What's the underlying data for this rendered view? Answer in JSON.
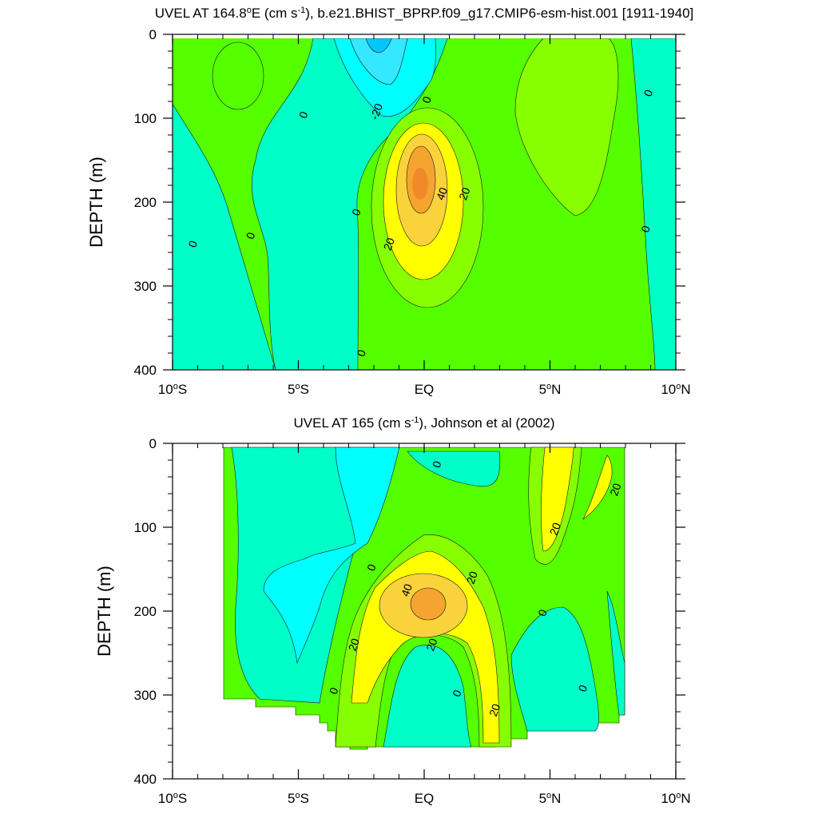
{
  "chart_data": [
    {
      "type": "heatmap",
      "title": "UVEL AT 164.8",
      "title_sup_deg": "o",
      "title_mid": "E (cm s",
      "title_sup_unit": "-1",
      "title_end": "), b.e21.BHIST_BPRP.f09_g17.CMIP6-esm-hist.001 [1911-1940]",
      "ylabel": "DEPTH (m)",
      "ylim": [
        0,
        400
      ],
      "xlim": [
        -10,
        10
      ],
      "x_ticks": [
        {
          "value": -10,
          "label": "10",
          "sup": "o",
          "hemi": "S"
        },
        {
          "value": -5,
          "label": "5",
          "sup": "o",
          "hemi": "S"
        },
        {
          "value": 0,
          "label": "EQ",
          "sup": "",
          "hemi": ""
        },
        {
          "value": 5,
          "label": "5",
          "sup": "o",
          "hemi": "N"
        },
        {
          "value": 10,
          "label": "10",
          "sup": "o",
          "hemi": "N"
        }
      ],
      "y_ticks": [
        {
          "value": 0,
          "label": "0"
        },
        {
          "value": 100,
          "label": "100"
        },
        {
          "value": 200,
          "label": "200"
        },
        {
          "value": 300,
          "label": "300"
        },
        {
          "value": 400,
          "label": "400"
        }
      ],
      "contour_labels": [
        {
          "text": "-20",
          "lon": -1.9,
          "depth": 92
        },
        {
          "text": "0",
          "lon": 0.1,
          "depth": 78
        },
        {
          "text": "0",
          "lon": -4.8,
          "depth": 96
        },
        {
          "text": "0",
          "lon": 8.9,
          "depth": 70
        },
        {
          "text": "40",
          "lon": 0.7,
          "depth": 190
        },
        {
          "text": "20",
          "lon": 1.6,
          "depth": 190
        },
        {
          "text": "20",
          "lon": -1.4,
          "depth": 250
        },
        {
          "text": "0",
          "lon": -2.7,
          "depth": 212
        },
        {
          "text": "0",
          "lon": -9.2,
          "depth": 250
        },
        {
          "text": "0",
          "lon": -6.9,
          "depth": 240
        },
        {
          "text": "0",
          "lon": 8.8,
          "depth": 232
        },
        {
          "text": "0",
          "lon": -2.5,
          "depth": 380
        }
      ]
    },
    {
      "type": "heatmap",
      "title": "UVEL AT 165 (cm s",
      "title_sup_unit": "-1",
      "title_end": "), Johnson et al (2002)",
      "ylabel": "DEPTH (m)",
      "ylim": [
        0,
        400
      ],
      "xlim": [
        -10,
        10
      ],
      "x_ticks": [
        {
          "value": -10,
          "label": "10",
          "sup": "o",
          "hemi": "S"
        },
        {
          "value": -5,
          "label": "5",
          "sup": "o",
          "hemi": "S"
        },
        {
          "value": 0,
          "label": "EQ",
          "sup": "",
          "hemi": ""
        },
        {
          "value": 5,
          "label": "5",
          "sup": "o",
          "hemi": "N"
        },
        {
          "value": 10,
          "label": "10",
          "sup": "o",
          "hemi": "N"
        }
      ],
      "y_ticks": [
        {
          "value": 0,
          "label": "0"
        },
        {
          "value": 100,
          "label": "100"
        },
        {
          "value": 200,
          "label": "200"
        },
        {
          "value": 300,
          "label": "300"
        },
        {
          "value": 400,
          "label": "400"
        }
      ],
      "contour_labels": [
        {
          "text": "0",
          "lon": 0.5,
          "depth": 25
        },
        {
          "text": "20",
          "lon": 7.6,
          "depth": 55
        },
        {
          "text": "20",
          "lon": 5.2,
          "depth": 102
        },
        {
          "text": "0",
          "lon": -2.1,
          "depth": 148
        },
        {
          "text": "20",
          "lon": 1.9,
          "depth": 160
        },
        {
          "text": "40",
          "lon": -0.7,
          "depth": 175
        },
        {
          "text": "0",
          "lon": 4.7,
          "depth": 202
        },
        {
          "text": "20",
          "lon": -2.8,
          "depth": 240
        },
        {
          "text": "20",
          "lon": 0.3,
          "depth": 240
        },
        {
          "text": "0",
          "lon": -3.6,
          "depth": 295
        },
        {
          "text": "0",
          "lon": 1.3,
          "depth": 298
        },
        {
          "text": "0",
          "lon": 6.3,
          "depth": 292
        },
        {
          "text": "20",
          "lon": 2.8,
          "depth": 318
        }
      ]
    }
  ],
  "colors": {
    "ge40": "#f5a430",
    "c30": "#fad23c",
    "c20": "#ffff00",
    "c10": "#87ff00",
    "c0": "#55ff00",
    "cm10": "#00ffc8",
    "cm20": "#00ffff",
    "cm30": "#33e8ff",
    "le40": "#00c8ff"
  }
}
